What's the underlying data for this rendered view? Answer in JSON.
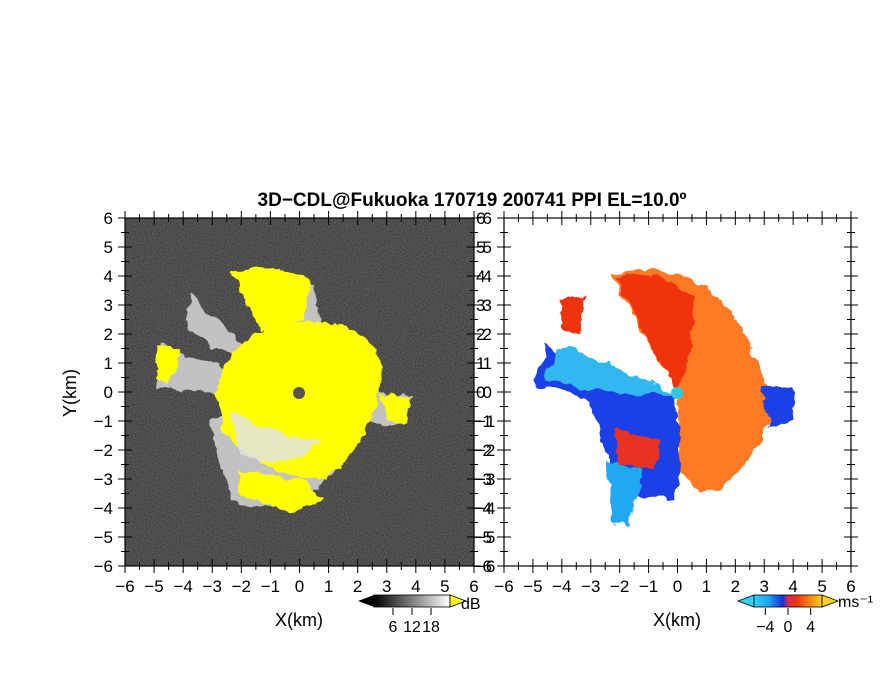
{
  "title": "3D−CDL@Fukuoka 170719 200741 PPI EL=10.0º",
  "colors": {
    "background_noise": "#2a2a2a",
    "reflectivity_high": "#ffff00",
    "reflectivity_low": "#dcdcdc",
    "velocity_negative": "#1030e0",
    "velocity_near_zero": "#20c8f0",
    "velocity_positive": "#f03010",
    "velocity_positive_far": "#ff8a20",
    "radar_site_left": "#555555",
    "radar_site_right": "#30c8e0"
  },
  "chart_data": [
    {
      "type": "heatmap",
      "name": "reflectivity",
      "xlabel": "X(km)",
      "ylabel": "Y(km)",
      "xlim": [
        -6,
        6
      ],
      "ylim": [
        -6,
        6
      ],
      "x_ticks": [
        "−6",
        "−5",
        "−4",
        "−3",
        "−2",
        "−1",
        "0",
        "1",
        "2",
        "3",
        "4",
        "5",
        "6"
      ],
      "y_ticks": [
        "−6",
        "−5",
        "−4",
        "−3",
        "−2",
        "−1",
        "0",
        "1",
        "2",
        "3",
        "4",
        "5",
        "6"
      ],
      "colorbar": {
        "label": "dB",
        "ticks": [
          "6",
          "12",
          "18"
        ],
        "range": [
          0,
          24
        ]
      },
      "radar_site": [
        0,
        0
      ]
    },
    {
      "type": "heatmap",
      "name": "doppler_velocity",
      "xlabel": "X(km)",
      "ylabel": "",
      "xlim": [
        -6,
        6
      ],
      "ylim": [
        -6,
        6
      ],
      "x_ticks": [
        "−6",
        "−5",
        "−4",
        "−3",
        "−2",
        "−1",
        "0",
        "1",
        "2",
        "3",
        "4",
        "5",
        "6"
      ],
      "y_ticks": [
        "−6",
        "−5",
        "−4",
        "−3",
        "−2",
        "−1",
        "0",
        "1",
        "2",
        "3",
        "4",
        "5",
        "6"
      ],
      "colorbar": {
        "label": "ms⁻¹",
        "ticks": [
          "−4",
          "0",
          "4"
        ],
        "range": [
          -6,
          6
        ]
      },
      "radar_site": [
        0,
        0
      ]
    }
  ]
}
